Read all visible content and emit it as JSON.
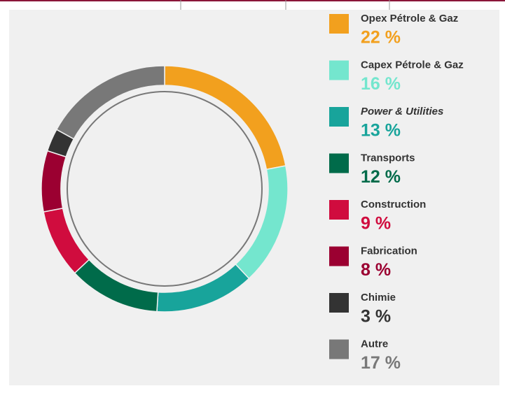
{
  "chart_data": {
    "type": "donut",
    "categories": [
      "Opex Pétrole & Gaz",
      "Capex Pétrole & Gaz",
      "Power & Utilities",
      "Transports",
      "Construction",
      "Fabrication",
      "Chimie",
      "Autre"
    ],
    "values": [
      22,
      16,
      13,
      12,
      9,
      8,
      3,
      17
    ],
    "value_labels": [
      "22 %",
      "16 %",
      "13 %",
      "12 %",
      "9 %",
      "8 %",
      "3 %",
      "17 %"
    ],
    "colors": [
      "#f2a01e",
      "#74e6ce",
      "#18a49b",
      "#006b4a",
      "#d00c3e",
      "#9b0031",
      "#333333",
      "#787878"
    ]
  }
}
